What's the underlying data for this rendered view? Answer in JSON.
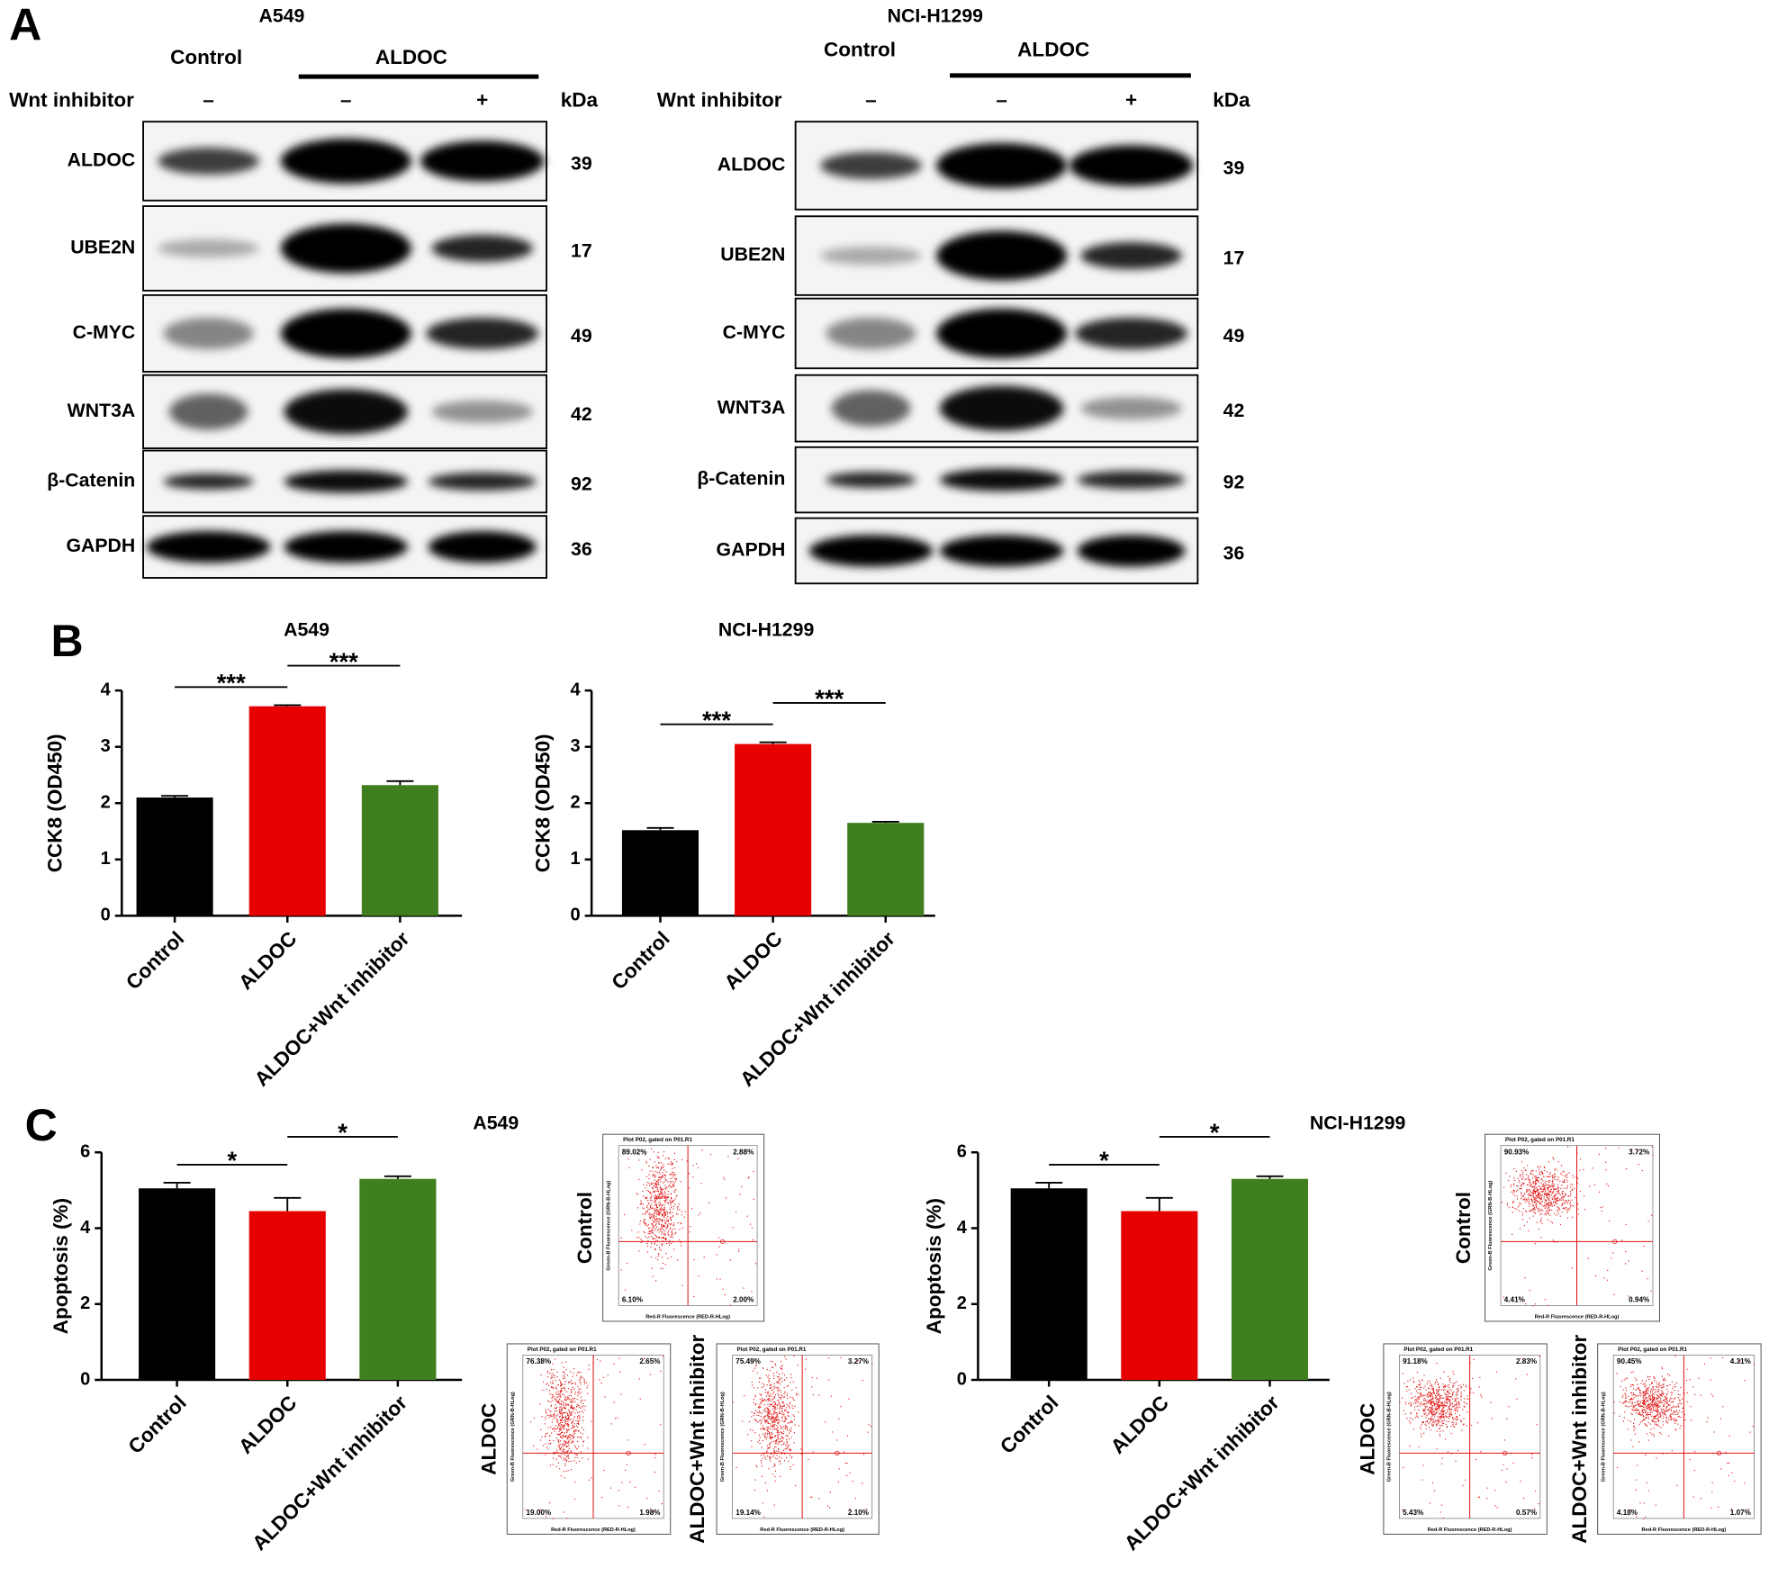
{
  "panel_a": {
    "label": "A",
    "blots": [
      {
        "cell_line": "A549",
        "control": "Control",
        "treatment": "ALDOC",
        "row_label": "Wnt inhibitor",
        "lanes": [
          "–",
          "–",
          "+"
        ],
        "unit": "kDa",
        "proteins": [
          {
            "name": "ALDOC",
            "kda": 39
          },
          {
            "name": "UBE2N",
            "kda": 17
          },
          {
            "name": "C-MYC",
            "kda": 49
          },
          {
            "name": "WNT3A",
            "kda": 42
          },
          {
            "name": "β-Catenin",
            "kda": 92
          },
          {
            "name": "GAPDH",
            "kda": 36
          }
        ]
      },
      {
        "cell_line": "NCI-H1299",
        "control": "Control",
        "treatment": "ALDOC",
        "row_label": "Wnt inhibitor",
        "lanes": [
          "–",
          "–",
          "+"
        ],
        "unit": "kDa",
        "proteins": [
          {
            "name": "ALDOC",
            "kda": 39
          },
          {
            "name": "UBE2N",
            "kda": 17
          },
          {
            "name": "C-MYC",
            "kda": 49
          },
          {
            "name": "WNT3A",
            "kda": 42
          },
          {
            "name": "β-Catenin",
            "kda": 92
          },
          {
            "name": "GAPDH",
            "kda": 36
          }
        ]
      }
    ]
  },
  "panel_b": {
    "label": "B"
  },
  "panel_c": {
    "label": "C",
    "plots": [
      {
        "label": "Control",
        "header": "Plot P02, gated on P01.R1",
        "x_axis": "Red-R Fluorescence (RED-R-HLog)",
        "y_axis": "Green-B Fluorescence (GRN-B-HLog)",
        "quadrants": [
          "89.02%",
          "2.88%",
          "6.10%",
          "2.00%"
        ]
      },
      {
        "label": "ALDOC",
        "header": "Plot P02, gated on P01.R1",
        "x_axis": "Red-R Fluorescence (RED-R-HLog)",
        "y_axis": "Green-B Fluorescence (GRN-B-HLog)",
        "quadrants": [
          "76.38%",
          "2.65%",
          "19.00%",
          "1.98%"
        ]
      },
      {
        "label": "ALDOC+Wnt inhibitor",
        "header": "Plot P02, gated on P01.R1",
        "x_axis": "Red-R Fluorescence (RED-R-HLog)",
        "y_axis": "Green-B Fluorescence (GRN-B-HLog)",
        "quadrants": [
          "75.49%",
          "3.27%",
          "19.14%",
          "2.10%"
        ]
      },
      {
        "label": "Control",
        "header": "Plot P02, gated on P01.R1",
        "x_axis": "Red-R Fluorescence (RED-R-HLog)",
        "y_axis": "Green-B Fluorescence (GRN-B-HLog)",
        "quadrants": [
          "90.93%",
          "3.72%",
          "4.41%",
          "0.94%"
        ]
      },
      {
        "label": "ALDOC",
        "header": "Plot P02, gated on P01.R1",
        "x_axis": "Red-R Fluorescence (RED-R-HLog)",
        "y_axis": "Green-B Fluorescence (GRN-B-HLog)",
        "quadrants": [
          "91.18%",
          "2.83%",
          "5.43%",
          "0.57%"
        ]
      },
      {
        "label": "ALDOC+Wnt inhibitor",
        "header": "Plot P02, gated on P01.R1",
        "x_axis": "Red-R Fluorescence (RED-R-HLog)",
        "y_axis": "Green-B Fluorescence (GRN-B-HLog)",
        "quadrants": [
          "90.45%",
          "4.31%",
          "4.18%",
          "1.07%"
        ]
      }
    ]
  },
  "chart_data": [
    {
      "type": "bar",
      "title": "A549",
      "y_label": "CCK8 (OD450)",
      "categories": [
        "Control",
        "ALDOC",
        "ALDOC+Wnt inhibitor"
      ],
      "values": [
        2.1,
        3.72,
        2.32
      ],
      "errors": [
        0.03,
        0.02,
        0.07
      ],
      "colors": [
        "#000000",
        "#e60000",
        "#3f7f1e"
      ],
      "ylim": [
        0,
        4
      ],
      "yticks": [
        0,
        1,
        2,
        3,
        4
      ],
      "significance": [
        {
          "label": "***",
          "between": [
            0,
            1
          ]
        },
        {
          "label": "***",
          "between": [
            1,
            2
          ]
        }
      ]
    },
    {
      "type": "bar",
      "title": "NCI-H1299",
      "y_label": "CCK8 (OD450)",
      "categories": [
        "Control",
        "ALDOC",
        "ALDOC+Wnt inhibitor"
      ],
      "values": [
        1.52,
        3.05,
        1.65
      ],
      "errors": [
        0.04,
        0.03,
        0.02
      ],
      "colors": [
        "#000000",
        "#e60000",
        "#3f7f1e"
      ],
      "ylim": [
        0,
        4
      ],
      "yticks": [
        0,
        1,
        2,
        3,
        4
      ],
      "significance": [
        {
          "label": "***",
          "between": [
            0,
            1
          ]
        },
        {
          "label": "***",
          "between": [
            1,
            2
          ]
        }
      ]
    },
    {
      "type": "bar",
      "title": "A549",
      "y_label": "Apoptosis (%)",
      "categories": [
        "Control",
        "ALDOC",
        "ALDOC+Wnt inhibitor"
      ],
      "values": [
        5.05,
        4.45,
        5.3
      ],
      "errors": [
        0.15,
        0.35,
        0.07
      ],
      "colors": [
        "#000000",
        "#e60000",
        "#3f7f1e"
      ],
      "ylim": [
        0,
        6
      ],
      "yticks": [
        0,
        2,
        4,
        6
      ],
      "significance": [
        {
          "label": "*",
          "between": [
            0,
            1
          ]
        },
        {
          "label": "*",
          "between": [
            1,
            2
          ]
        }
      ]
    },
    {
      "type": "bar",
      "title": "NCI-H1299",
      "y_label": "Apoptosis (%)",
      "categories": [
        "Control",
        "ALDOC",
        "ALDOC+Wnt inhibitor"
      ],
      "values": [
        5.05,
        4.45,
        5.3
      ],
      "errors": [
        0.15,
        0.35,
        0.07
      ],
      "colors": [
        "#000000",
        "#e60000",
        "#3f7f1e"
      ],
      "ylim": [
        0,
        6
      ],
      "yticks": [
        0,
        2,
        4,
        6
      ],
      "significance": [
        {
          "label": "*",
          "between": [
            0,
            1
          ]
        },
        {
          "label": "*",
          "between": [
            1,
            2
          ]
        }
      ]
    }
  ]
}
